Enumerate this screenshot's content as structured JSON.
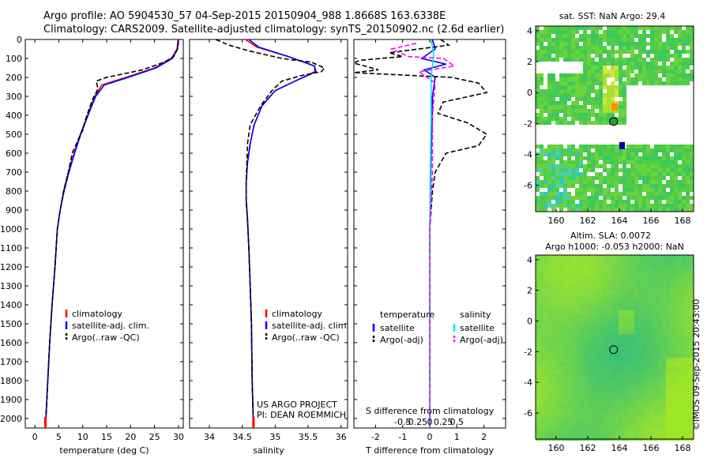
{
  "header": {
    "title_line1": "Argo profile: AO 5904530_57 04-Sep-2015 20150904_988 1.8668S 163.6338E",
    "title_line2": "Climatology: CARS2009. Satellite-adjusted climatology: synTS_20150902.nc (2.6d earlier)"
  },
  "colors": {
    "climatology": "#ff0000",
    "satellite": "#0000ff",
    "argo": "#000000",
    "sat_salinity": "#00e5ee",
    "argo_salinity": "#ff00ff"
  },
  "chart_data": [
    {
      "id": "temperature",
      "type": "line",
      "xlabel": "temperature (deg C)",
      "xlim": [
        -2,
        31
      ],
      "xticks": [
        0,
        5,
        10,
        15,
        20,
        25,
        30
      ],
      "ylim": [
        2050,
        0
      ],
      "yticks": [
        0,
        100,
        200,
        300,
        400,
        500,
        600,
        700,
        800,
        900,
        1000,
        1100,
        1200,
        1300,
        1400,
        1500,
        1600,
        1700,
        1800,
        1900,
        2000
      ],
      "legend": [
        "climatology",
        "satellite-adj. clim.",
        "Argo(..raw -QC)"
      ],
      "series": [
        {
          "name": "climatology",
          "style": "solid",
          "points": [
            [
              29.9,
              0
            ],
            [
              29.7,
              50
            ],
            [
              28.5,
              100
            ],
            [
              25,
              150
            ],
            [
              19,
              200
            ],
            [
              14,
              240
            ],
            [
              12.5,
              300
            ],
            [
              11,
              400
            ],
            [
              9.5,
              500
            ],
            [
              8.2,
              600
            ],
            [
              7,
              700
            ],
            [
              6,
              800
            ],
            [
              5.3,
              900
            ],
            [
              4.7,
              1000
            ],
            [
              4.2,
              1200
            ],
            [
              3.6,
              1400
            ],
            [
              3.1,
              1600
            ],
            [
              2.7,
              1800
            ],
            [
              2.3,
              2000
            ],
            [
              2.2,
              2050
            ]
          ]
        },
        {
          "name": "satellite",
          "style": "solid",
          "points": [
            [
              30,
              0
            ],
            [
              29.8,
              50
            ],
            [
              28.7,
              100
            ],
            [
              25.3,
              150
            ],
            [
              19.5,
              200
            ],
            [
              14.5,
              240
            ],
            [
              12.7,
              300
            ],
            [
              11.1,
              400
            ],
            [
              9.6,
              500
            ],
            [
              8.3,
              600
            ],
            [
              7.1,
              700
            ],
            [
              6.1,
              800
            ],
            [
              5.3,
              900
            ],
            [
              4.7,
              1000
            ],
            [
              4.2,
              1200
            ],
            [
              3.6,
              1400
            ],
            [
              3.1,
              1600
            ],
            [
              2.7,
              1800
            ],
            [
              2.3,
              2000
            ],
            [
              2.2,
              2050
            ]
          ]
        },
        {
          "name": "argo",
          "style": "dashed",
          "points": [
            [
              30,
              10
            ],
            [
              29.8,
              50
            ],
            [
              29,
              90
            ],
            [
              27,
              120
            ],
            [
              22.5,
              160
            ],
            [
              15,
              200
            ],
            [
              12.8,
              220
            ],
            [
              13.2,
              260
            ],
            [
              12,
              320
            ],
            [
              10.6,
              420
            ],
            [
              10,
              480
            ],
            [
              9.2,
              520
            ],
            [
              7.8,
              600
            ],
            [
              7,
              700
            ],
            [
              6,
              800
            ],
            [
              5.3,
              900
            ],
            [
              4.7,
              1000
            ],
            [
              4.2,
              1200
            ],
            [
              3.6,
              1400
            ],
            [
              3.1,
              1600
            ],
            [
              2.7,
              1800
            ],
            [
              2.3,
              2000
            ],
            [
              2.3,
              2030
            ]
          ]
        }
      ]
    },
    {
      "id": "salinity",
      "type": "line",
      "xlabel": "salinity",
      "xlim": [
        33.7,
        36.1
      ],
      "xticks": [
        34,
        34.5,
        35,
        35.5,
        36
      ],
      "xtick_labels": [
        "34",
        "34.5",
        "35",
        "35.5",
        "36"
      ],
      "ylim": [
        2050,
        0
      ],
      "legend": [
        "climatology",
        "satellite-adj. clim.",
        "Argo(..raw -QC)"
      ],
      "annotation": [
        "US ARGO PROJECT",
        "PI: DEAN ROEMMICH"
      ],
      "series": [
        {
          "name": "climatology",
          "style": "solid",
          "points": [
            [
              34.55,
              0
            ],
            [
              34.72,
              40
            ],
            [
              35.2,
              90
            ],
            [
              35.6,
              140
            ],
            [
              35.6,
              170
            ],
            [
              35.3,
              220
            ],
            [
              35,
              270
            ],
            [
              34.8,
              350
            ],
            [
              34.68,
              450
            ],
            [
              34.62,
              550
            ],
            [
              34.58,
              650
            ],
            [
              34.56,
              750
            ],
            [
              34.56,
              850
            ],
            [
              34.58,
              950
            ],
            [
              34.6,
              1100
            ],
            [
              34.62,
              1300
            ],
            [
              34.64,
              1500
            ],
            [
              34.65,
              1800
            ],
            [
              34.67,
              2050
            ]
          ]
        },
        {
          "name": "satellite",
          "style": "solid",
          "points": [
            [
              34.6,
              0
            ],
            [
              34.75,
              40
            ],
            [
              35.2,
              90
            ],
            [
              35.6,
              140
            ],
            [
              35.62,
              170
            ],
            [
              35.3,
              220
            ],
            [
              35,
              270
            ],
            [
              34.8,
              350
            ],
            [
              34.68,
              450
            ],
            [
              34.62,
              550
            ],
            [
              34.58,
              650
            ],
            [
              34.56,
              750
            ],
            [
              34.56,
              850
            ],
            [
              34.58,
              950
            ],
            [
              34.6,
              1100
            ],
            [
              34.62,
              1300
            ],
            [
              34.64,
              1500
            ],
            [
              34.65,
              1800
            ],
            [
              34.67,
              2050
            ]
          ]
        },
        {
          "name": "argo",
          "style": "dashed",
          "points": [
            [
              34.1,
              0
            ],
            [
              34.3,
              30
            ],
            [
              34.6,
              60
            ],
            [
              35.1,
              100
            ],
            [
              35.55,
              120
            ],
            [
              35.75,
              150
            ],
            [
              35.7,
              170
            ],
            [
              35.4,
              190
            ],
            [
              35.1,
              220
            ],
            [
              34.95,
              270
            ],
            [
              34.78,
              350
            ],
            [
              34.62,
              450
            ],
            [
              34.58,
              550
            ],
            [
              34.57,
              650
            ],
            [
              34.56,
              750
            ],
            [
              34.56,
              850
            ],
            [
              34.58,
              950
            ],
            [
              34.6,
              1100
            ],
            [
              34.62,
              1300
            ],
            [
              34.64,
              1500
            ],
            [
              34.65,
              1800
            ],
            [
              34.67,
              2030
            ]
          ]
        }
      ]
    },
    {
      "id": "difference",
      "type": "line",
      "xlabel": "T difference from climatology",
      "xlabel_top": "S difference from climatology",
      "xlim": [
        -2.8,
        2.8
      ],
      "xticks": [
        -2,
        -1,
        0,
        1,
        2
      ],
      "top_ticks": [
        -0.5,
        -0.25,
        0,
        0.25,
        0.5
      ],
      "top_tick_labels": [
        "-0.5",
        "-0.25",
        "0",
        "0.25",
        "0.5"
      ],
      "ylim": [
        2050,
        0
      ],
      "legend_left_title": "temperature",
      "legend_right_title": "salinity",
      "legend_left": [
        "satellite",
        "Argo(-adj)"
      ],
      "legend_right": [
        "satellite",
        "Argo(-adj)"
      ],
      "series": [
        {
          "name": "T satellite",
          "style": "solid",
          "points": [
            [
              0.1,
              0
            ],
            [
              0.2,
              50
            ],
            [
              -0.3,
              100
            ],
            [
              0.6,
              130
            ],
            [
              -0.2,
              160
            ],
            [
              0.2,
              200
            ],
            [
              0.1,
              300
            ],
            [
              0.1,
              400
            ],
            [
              0.05,
              600
            ],
            [
              0,
              1000
            ],
            [
              0,
              2050
            ]
          ]
        },
        {
          "name": "T Argo",
          "style": "dashed",
          "points": [
            [
              0.4,
              0
            ],
            [
              0.7,
              30
            ],
            [
              -1.5,
              70
            ],
            [
              -1,
              90
            ],
            [
              -2.6,
              110
            ],
            [
              -2.8,
              125
            ],
            [
              -2.4,
              140
            ],
            [
              -1.9,
              160
            ],
            [
              -2.8,
              175
            ],
            [
              0.8,
              200
            ],
            [
              1.8,
              230
            ],
            [
              2.1,
              280
            ],
            [
              0.5,
              330
            ],
            [
              0.3,
              390
            ],
            [
              1.4,
              440
            ],
            [
              2.1,
              500
            ],
            [
              1.8,
              560
            ],
            [
              0.6,
              600
            ],
            [
              0.2,
              700
            ],
            [
              0.1,
              800
            ],
            [
              0,
              1000
            ],
            [
              0,
              2050
            ]
          ]
        },
        {
          "name": "S satellite",
          "style": "solid",
          "points": [
            [
              0.05,
              0
            ],
            [
              0.15,
              80
            ],
            [
              0.05,
              200
            ],
            [
              0.05,
              400
            ],
            [
              0.02,
              700
            ],
            [
              0,
              1000
            ],
            [
              0,
              2050
            ]
          ]
        },
        {
          "name": "S Argo",
          "style": "dashed",
          "points": [
            [
              -0.5,
              20
            ],
            [
              -1.4,
              50
            ],
            [
              -0.8,
              90
            ],
            [
              0.5,
              100
            ],
            [
              0.9,
              140
            ],
            [
              -0.4,
              170
            ],
            [
              0.2,
              230
            ],
            [
              0.1,
              400
            ],
            [
              0.1,
              700
            ],
            [
              0,
              1000
            ],
            [
              0,
              2050
            ]
          ]
        }
      ]
    },
    {
      "id": "sst_map",
      "type": "heatmap",
      "title": "sat. SST: NaN Argo: 29.4",
      "xticks": [
        160,
        162,
        164,
        166,
        168
      ],
      "yticks": [
        4,
        2,
        0,
        -2,
        -4,
        -6
      ],
      "xlim": [
        158.7,
        168.7
      ],
      "ylim": [
        -7.7,
        4.3
      ],
      "argo_position": [
        163.6338,
        -1.8668
      ]
    },
    {
      "id": "sla_map",
      "type": "heatmap",
      "title_line1": "Altim. SLA: 0.0072",
      "title_line2": "Argo h1000: -0.053 h2000: NaN",
      "xticks": [
        160,
        162,
        164,
        166,
        168
      ],
      "yticks": [
        4,
        2,
        0,
        -2,
        -4,
        -6
      ],
      "xlim": [
        158.7,
        168.7
      ],
      "ylim": [
        -7.7,
        4.3
      ],
      "argo_position": [
        163.6338,
        -1.8668
      ]
    }
  ],
  "footer": {
    "copyright": "©IMOS 09-Sep-2015 20:43:00"
  }
}
